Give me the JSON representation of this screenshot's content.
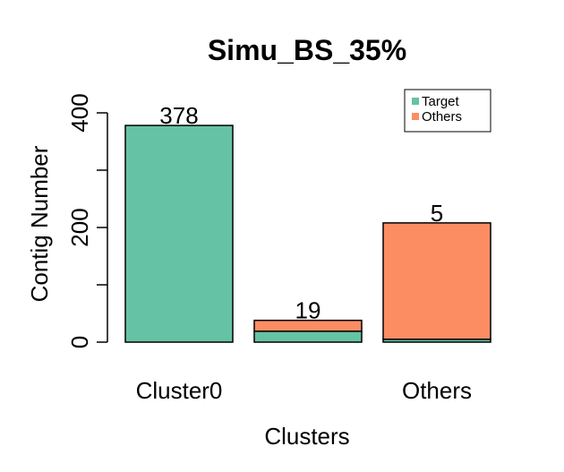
{
  "chart_data": {
    "type": "bar",
    "stacked": true,
    "title": "Simu_BS_35%",
    "xlabel": "Clusters",
    "ylabel": "Contig Number",
    "ylim": [
      0,
      400
    ],
    "yticks": [
      0,
      100,
      200,
      300,
      400
    ],
    "ytick_labels": [
      "0",
      "",
      "200",
      "",
      "400"
    ],
    "categories": [
      "Cluster0",
      "",
      "Others"
    ],
    "series": [
      {
        "name": "Target",
        "color": "#66c2a5",
        "values": [
          378,
          19,
          5
        ]
      },
      {
        "name": "Others",
        "color": "#fc8d62",
        "values": [
          0,
          19,
          203
        ]
      }
    ],
    "data_labels": [
      "378",
      "19",
      "5"
    ],
    "legend_position": "top-right",
    "grid": false
  }
}
